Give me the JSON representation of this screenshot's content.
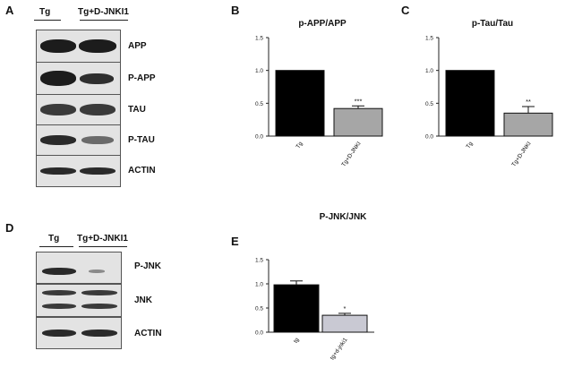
{
  "panels": {
    "A": "A",
    "B": "B",
    "C": "C",
    "D": "D",
    "E": "E"
  },
  "blotA": {
    "lane1": "Tg",
    "lane2": "Tg+D-JNKI1",
    "rows": [
      "APP",
      "P-APP",
      "TAU",
      "P-TAU",
      "ACTIN"
    ]
  },
  "blotD": {
    "lane1": "Tg",
    "lane2": "Tg+D-JNKI1",
    "rows": [
      "P-JNK",
      "JNK",
      "ACTIN"
    ]
  },
  "chart_data": [
    {
      "type": "bar",
      "title": "p-APP/APP",
      "categories": [
        "Tg",
        "Tg+D-JNKI"
      ],
      "values": [
        1.0,
        0.42
      ],
      "errors": [
        0,
        0.04
      ],
      "significance": [
        "",
        "***"
      ],
      "bar_colors": [
        "#000000",
        "#a6a6a6"
      ],
      "ylim": [
        0,
        1.5
      ],
      "yticks": [
        "0.0",
        "0.5",
        "1.0",
        "1.5"
      ]
    },
    {
      "type": "bar",
      "title": "p-Tau/Tau",
      "categories": [
        "Tg",
        "Tg+D-JNKI"
      ],
      "values": [
        1.0,
        0.35
      ],
      "errors": [
        0,
        0.1
      ],
      "significance": [
        "",
        "**"
      ],
      "bar_colors": [
        "#000000",
        "#a6a6a6"
      ],
      "ylim": [
        0,
        1.5
      ],
      "yticks": [
        "0.0",
        "0.5",
        "1.0",
        "1.5"
      ]
    },
    {
      "type": "bar",
      "title": "P-JNK/JNK",
      "categories": [
        "tg",
        "tg+d-jnki1"
      ],
      "values": [
        0.98,
        0.35
      ],
      "errors": [
        0.08,
        0.04
      ],
      "significance": [
        "",
        "*"
      ],
      "bar_colors": [
        "#000000",
        "#c9c9d3"
      ],
      "ylim": [
        0,
        1.5
      ],
      "yticks": [
        "0.0",
        "0.5",
        "1.0",
        "1.5"
      ]
    }
  ]
}
